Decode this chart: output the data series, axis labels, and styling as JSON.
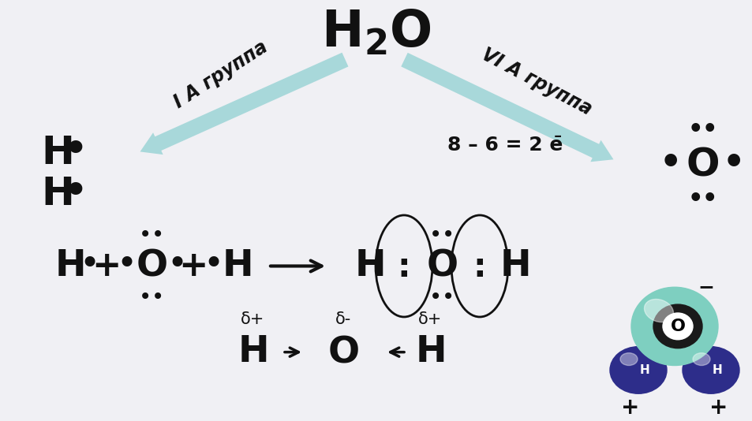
{
  "bg_color": "#f0f0f4",
  "arrow_color": "#a8d8da",
  "arrow_edge_color": "#88b8ba",
  "text_color": "#111111",
  "title_fontsize": 46,
  "label_fontsize": 17,
  "main_fontsize": 32,
  "small_fontsize": 22,
  "dot_fontsize": 28,
  "arrow_label_left": "I А группа",
  "arrow_label_right": "VI А группа",
  "eq_label": "8 – 6 = 2 е̄"
}
